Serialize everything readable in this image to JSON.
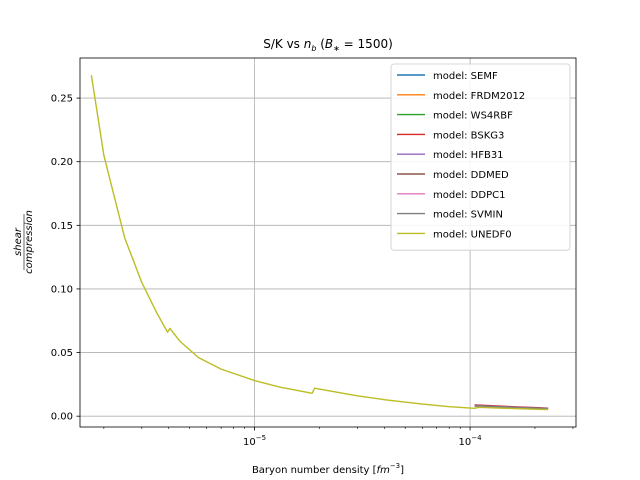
{
  "chart_data": {
    "type": "line",
    "title": "S/K vs n_b (B* = 1500)",
    "xlabel": "Baryon number density [fm^-3]",
    "ylabel": "shear / compression",
    "xscale": "log",
    "xlim": [
      1.55e-06,
      0.00031
    ],
    "ylim": [
      -0.0085,
      0.2815
    ],
    "grid": true,
    "legend_position": "top-right",
    "x_ticks": [
      {
        "value": 1e-05,
        "base": "10",
        "exp": "−5"
      },
      {
        "value": 0.0001,
        "base": "10",
        "exp": "−4"
      }
    ],
    "y_ticks": [
      {
        "value": 0.0,
        "label": "0.00"
      },
      {
        "value": 0.05,
        "label": "0.05"
      },
      {
        "value": 0.1,
        "label": "0.10"
      },
      {
        "value": 0.15,
        "label": "0.15"
      },
      {
        "value": 0.2,
        "label": "0.20"
      },
      {
        "value": 0.25,
        "label": "0.25"
      }
    ],
    "series": [
      {
        "name": "model: SEMF",
        "color": "#1f77b4",
        "x": [
          0.000105,
          0.00013,
          0.00016,
          0.0002,
          0.00023
        ],
        "y": [
          0.0085,
          0.0078,
          0.0072,
          0.0066,
          0.0062
        ]
      },
      {
        "name": "model: FRDM2012",
        "color": "#ff7f0e",
        "x": [
          0.000105,
          0.00013,
          0.00016,
          0.0002,
          0.00023
        ],
        "y": [
          0.0078,
          0.0072,
          0.0066,
          0.0061,
          0.0057
        ]
      },
      {
        "name": "model: WS4RBF",
        "color": "#2ca02c",
        "x": [
          0.000105,
          0.00013,
          0.00016,
          0.0002,
          0.00023
        ],
        "y": [
          0.008,
          0.0074,
          0.0068,
          0.0062,
          0.0058
        ]
      },
      {
        "name": "model: BSKG3",
        "color": "#d62728",
        "x": [
          0.000105,
          0.00013,
          0.00016,
          0.0002,
          0.00023
        ],
        "y": [
          0.0088,
          0.0081,
          0.0074,
          0.0068,
          0.0063
        ]
      },
      {
        "name": "model: HFB31",
        "color": "#9467bd",
        "x": [
          0.000105,
          0.00013,
          0.00016,
          0.0002,
          0.00023
        ],
        "y": [
          0.0083,
          0.0077,
          0.007,
          0.0064,
          0.006
        ]
      },
      {
        "name": "model: DDMED",
        "color": "#8c564b",
        "x": [
          0.000105,
          0.00013,
          0.00016,
          0.0002,
          0.00023
        ],
        "y": [
          0.0081,
          0.0075,
          0.0069,
          0.0063,
          0.0059
        ]
      },
      {
        "name": "model: DDPC1",
        "color": "#e377c2",
        "x": [
          0.000105,
          0.00013,
          0.00016,
          0.0002,
          0.00023
        ],
        "y": [
          0.0079,
          0.0073,
          0.0067,
          0.0062,
          0.0058
        ]
      },
      {
        "name": "model: SVMIN",
        "color": "#7f7f7f",
        "x": [
          0.000105,
          0.00013,
          0.00016,
          0.0002,
          0.00023
        ],
        "y": [
          0.0082,
          0.0076,
          0.007,
          0.0064,
          0.006
        ]
      },
      {
        "name": "model: UNEDF0",
        "color": "#bcbd22",
        "x": [
          1.75e-06,
          2e-06,
          2.5e-06,
          3e-06,
          3.5e-06,
          3.95e-06,
          4.05e-06,
          4.5e-06,
          5.5e-06,
          7e-06,
          1e-05,
          1.3e-05,
          1.6e-05,
          1.85e-05,
          1.9e-05,
          2.2e-05,
          3e-05,
          4e-05,
          6e-05,
          8e-05,
          0.000105,
          0.00011,
          0.00013,
          0.00016,
          0.0002,
          0.00023
        ],
        "y": [
          0.268,
          0.205,
          0.14,
          0.105,
          0.082,
          0.066,
          0.069,
          0.059,
          0.046,
          0.037,
          0.028,
          0.023,
          0.02,
          0.018,
          0.022,
          0.02,
          0.016,
          0.013,
          0.0095,
          0.0075,
          0.0062,
          0.007,
          0.0065,
          0.006,
          0.0055,
          0.0052
        ]
      }
    ]
  }
}
